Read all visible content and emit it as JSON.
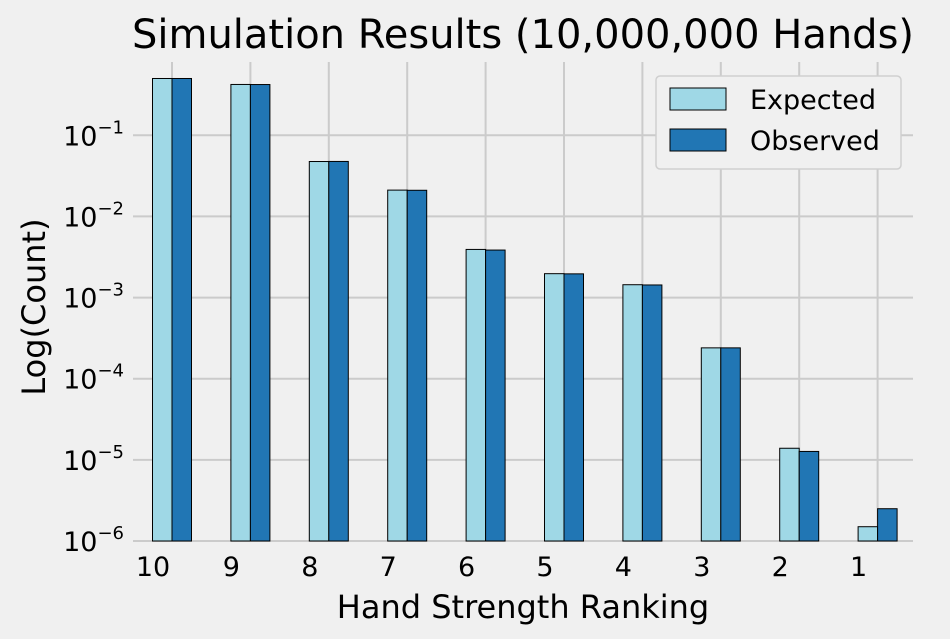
{
  "chart_data": {
    "type": "bar",
    "title": "Simulation Results (10,000,000 Hands)",
    "xlabel": "Hand Strength Ranking",
    "ylabel": "Log(Count)",
    "y_scale": "log",
    "ylim": [
      1e-06,
      0.8
    ],
    "categories": [
      "10",
      "9",
      "8",
      "7",
      "6",
      "5",
      "4",
      "3",
      "2",
      "1"
    ],
    "y_ticks": [
      {
        "value": 0.1,
        "base": "10",
        "exp": "−1"
      },
      {
        "value": 0.01,
        "base": "10",
        "exp": "−2"
      },
      {
        "value": 0.001,
        "base": "10",
        "exp": "−3"
      },
      {
        "value": 0.0001,
        "base": "10",
        "exp": "−4"
      },
      {
        "value": 1e-05,
        "base": "10",
        "exp": "−5"
      },
      {
        "value": 1e-06,
        "base": "10",
        "exp": "−6"
      }
    ],
    "series": [
      {
        "name": "Expected",
        "color": "#9fd8e6",
        "values": [
          0.501,
          0.423,
          0.0475,
          0.0211,
          0.00392,
          0.00197,
          0.00144,
          0.00024,
          1.39e-05,
          1.5e-06
        ]
      },
      {
        "name": "Observed",
        "color": "#2176b4",
        "values": [
          0.501,
          0.422,
          0.0476,
          0.021,
          0.00385,
          0.00196,
          0.00143,
          0.00024,
          1.27e-05,
          2.5e-06
        ]
      }
    ],
    "grid": true,
    "legend_position": "top-right"
  }
}
